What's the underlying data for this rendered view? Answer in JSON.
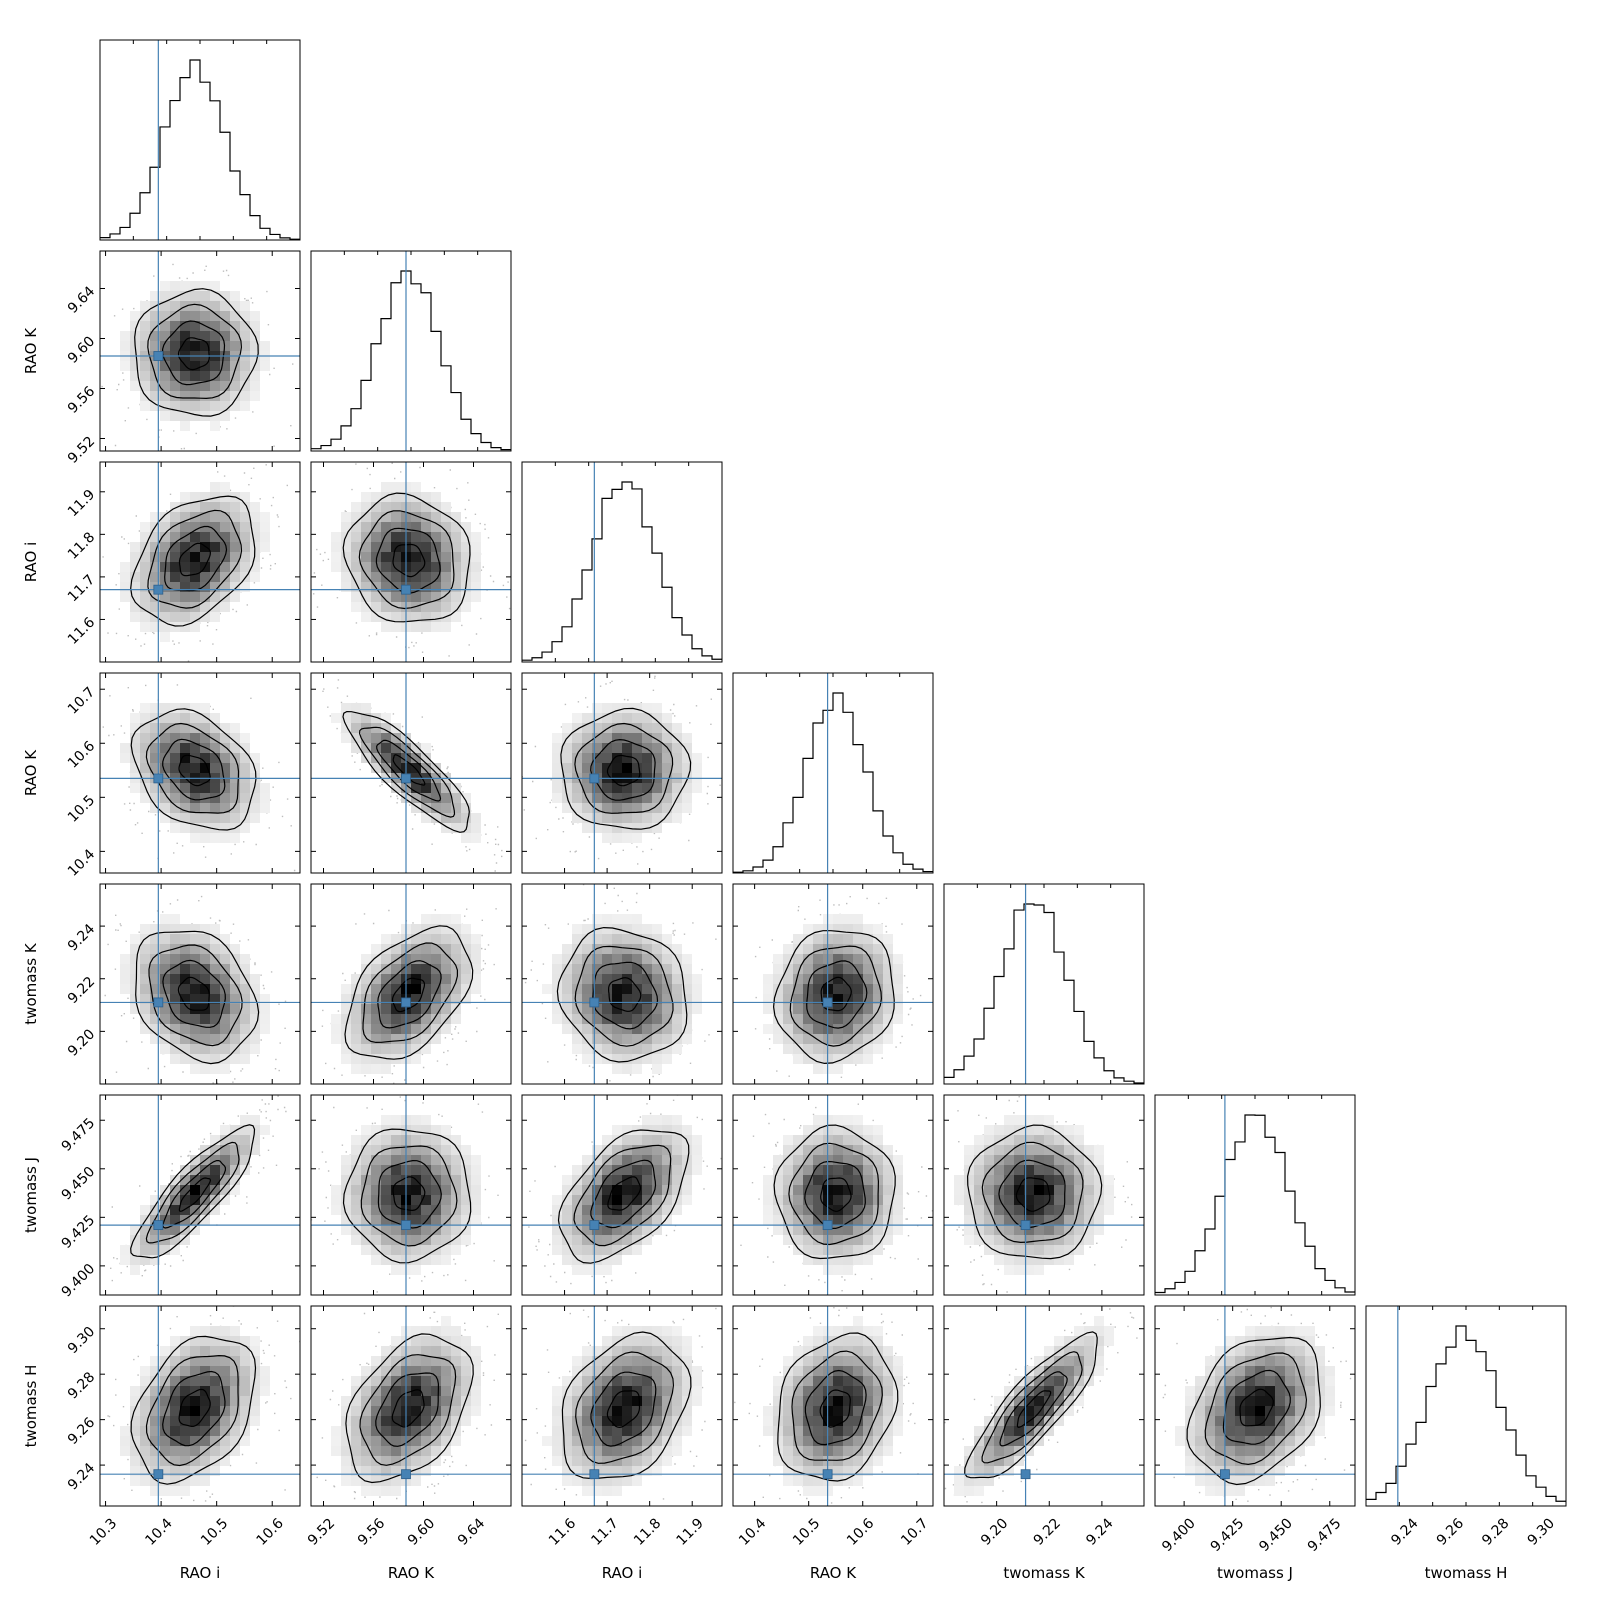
{
  "chart_data": {
    "type": "corner",
    "parameters": [
      {
        "label": "RAO i",
        "truth": 10.395,
        "mean": 10.46,
        "sd": 0.055,
        "range": [
          10.29,
          10.65
        ],
        "ticks": [
          10.3,
          10.4,
          10.5,
          10.6
        ],
        "tick_labels": [
          "10.3",
          "10.4",
          "10.5",
          "10.6"
        ]
      },
      {
        "label": "RAO K",
        "truth": 9.586,
        "mean": 9.588,
        "sd": 0.025,
        "range": [
          9.51,
          9.67
        ],
        "ticks": [
          9.52,
          9.56,
          9.6,
          9.64
        ],
        "tick_labels": [
          "9.52",
          "9.56",
          "9.60",
          "9.64"
        ]
      },
      {
        "label": "RAO i",
        "truth": 11.67,
        "mean": 11.74,
        "sd": 0.075,
        "range": [
          11.5,
          11.97
        ],
        "ticks": [
          11.6,
          11.7,
          11.8,
          11.9
        ],
        "tick_labels": [
          "11.6",
          "11.7",
          "11.8",
          "11.9"
        ]
      },
      {
        "label": "RAO K",
        "truth": 10.535,
        "mean": 10.55,
        "sd": 0.055,
        "range": [
          10.36,
          10.73
        ],
        "ticks": [
          10.4,
          10.5,
          10.6,
          10.7
        ],
        "tick_labels": [
          "10.4",
          "10.5",
          "10.6",
          "10.7"
        ]
      },
      {
        "label": "twomass K",
        "truth": 9.211,
        "mean": 9.214,
        "sd": 0.0125,
        "range": [
          9.18,
          9.256
        ],
        "ticks": [
          9.2,
          9.22,
          9.24
        ],
        "tick_labels": [
          "9.20",
          "9.22",
          "9.24"
        ]
      },
      {
        "label": "twomass J",
        "truth": 9.421,
        "mean": 9.437,
        "sd": 0.017,
        "range": [
          9.385,
          9.488
        ],
        "ticks": [
          9.4,
          9.425,
          9.45,
          9.475
        ],
        "tick_labels": [
          "9.400",
          "9.425",
          "9.450",
          "9.475"
        ]
      },
      {
        "label": "twomass H",
        "truth": 9.236,
        "mean": 9.265,
        "sd": 0.016,
        "range": [
          9.222,
          9.31
        ],
        "ticks": [
          9.24,
          9.26,
          9.28,
          9.3
        ],
        "tick_labels": [
          "9.24",
          "9.26",
          "9.28",
          "9.30"
        ]
      }
    ],
    "correlations": [
      [
        1,
        0,
        0.35,
        -0.3,
        -0.25,
        0.85,
        0.35
      ],
      [
        0,
        1,
        -0.1,
        -0.85,
        0.45,
        0,
        0.4
      ],
      [
        0.35,
        -0.1,
        1,
        0,
        -0.1,
        0.5,
        0.3
      ],
      [
        -0.3,
        -0.85,
        0,
        1,
        0.1,
        0,
        0.2
      ],
      [
        -0.25,
        0.45,
        -0.1,
        0.1,
        1,
        0,
        0.85
      ],
      [
        0.85,
        0,
        0.5,
        0,
        0,
        1,
        0.3
      ],
      [
        0.35,
        0.4,
        0.3,
        0.2,
        0.85,
        0.3,
        1
      ]
    ],
    "histogram_bins": 20,
    "contour_levels_sigma": [
      0.5,
      1.0,
      1.5,
      2.0
    ],
    "truth_color": "#4682b4",
    "grid": false,
    "legend": "none"
  }
}
